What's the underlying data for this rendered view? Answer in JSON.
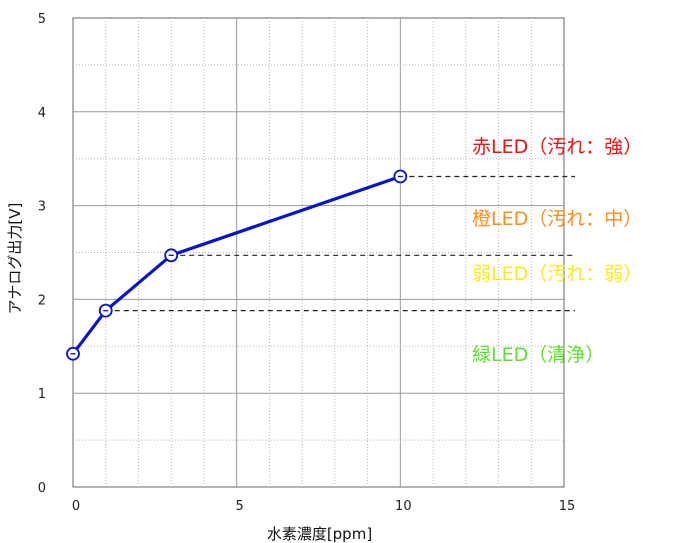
{
  "chart_data": {
    "type": "line",
    "xlabel": "水素濃度[ppm]",
    "ylabel": "アナログ出力[V]",
    "xlim": [
      0,
      15
    ],
    "ylim": [
      0,
      5
    ],
    "x_ticks": [
      0,
      5,
      10,
      15
    ],
    "y_ticks": [
      0,
      1,
      2,
      3,
      4,
      5
    ],
    "x_minor_step": 1,
    "y_minor_step": 0.5,
    "grid": true,
    "series": [
      {
        "x": [
          0,
          1,
          3,
          10
        ],
        "y": [
          1.42,
          1.88,
          2.47,
          3.31
        ],
        "color": "#0a14c8",
        "marker": "circle-hollow"
      }
    ],
    "thresholds": [
      {
        "y": 3.31,
        "x_from": 10
      },
      {
        "y": 2.47,
        "x_from": 3
      },
      {
        "y": 1.88,
        "x_from": 1
      }
    ],
    "annotations": [
      {
        "text": "赤LED（汚れ：強）",
        "color": "#ee1111"
      },
      {
        "text": "橙LED（汚れ：中）",
        "color": "#ff8c1a"
      },
      {
        "text": "弱LED（汚れ：弱）",
        "color": "#ffe81a"
      },
      {
        "text": "緑LED（清浄）",
        "color": "#5ee02e"
      }
    ]
  }
}
